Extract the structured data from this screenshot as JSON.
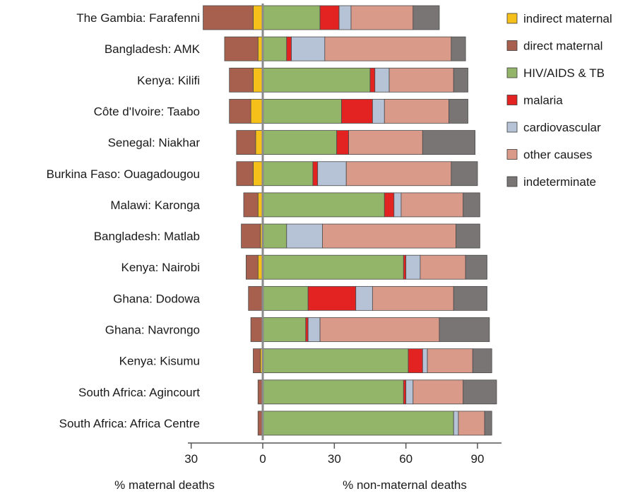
{
  "chart_data": {
    "type": "bar",
    "orientation": "horizontal",
    "stacked": true,
    "categories": [
      "The Gambia: Farafenni",
      "Bangladesh: AMK",
      "Kenya: Kilifi",
      "Côte d'Ivoire: Taabo",
      "Senegal: Niakhar",
      "Burkina Faso: Ouagadougou",
      "Malawi: Karonga",
      "Bangladesh: Matlab",
      "Kenya: Nairobi",
      "Ghana: Dodowa",
      "Ghana: Navrongo",
      "Kenya: Kisumu",
      "South Africa: Agincourt",
      "South Africa: Africa Centre"
    ],
    "maternal_series": [
      {
        "name": "indirect maternal",
        "color": "#f5c01a",
        "values": [
          4,
          2,
          4,
          5,
          3,
          4,
          2,
          1,
          2,
          0,
          0,
          1,
          0,
          0
        ]
      },
      {
        "name": "direct maternal",
        "color": "#a7604e",
        "values": [
          21,
          14,
          10,
          9,
          8,
          7,
          6,
          8,
          5,
          6,
          5,
          3,
          2,
          2
        ]
      }
    ],
    "non_maternal_series": [
      {
        "name": "HIV/AIDS & TB",
        "color": "#93b56a",
        "values": [
          24,
          10,
          45,
          33,
          31,
          21,
          51,
          10,
          59,
          19,
          18,
          61,
          59,
          80
        ]
      },
      {
        "name": "malaria",
        "color": "#e32222",
        "values": [
          8,
          2,
          2,
          13,
          5,
          2,
          4,
          0,
          1,
          20,
          1,
          6,
          1,
          0
        ]
      },
      {
        "name": "cardiovascular",
        "color": "#b6c2d6",
        "values": [
          5,
          14,
          6,
          5,
          0,
          12,
          3,
          15,
          6,
          7,
          5,
          2,
          3,
          2
        ]
      },
      {
        "name": "other causes",
        "color": "#d99a8a",
        "values": [
          26,
          53,
          27,
          27,
          31,
          44,
          26,
          56,
          19,
          34,
          50,
          19,
          21,
          11
        ]
      },
      {
        "name": "indeterminate",
        "color": "#7a7575",
        "values": [
          11,
          6,
          6,
          8,
          22,
          11,
          7,
          10,
          9,
          14,
          21,
          8,
          14,
          3
        ]
      }
    ],
    "legend": {
      "placement": "top-right",
      "entries": [
        "indirect maternal",
        "direct maternal",
        "HIV/AIDS & TB",
        "malaria",
        "cardiovascular",
        "other causes",
        "indeterminate"
      ]
    },
    "left_axis": {
      "ticks": [
        "30",
        "0"
      ],
      "label": "% maternal deaths",
      "range": [
        30,
        0
      ]
    },
    "right_axis": {
      "ticks": [
        "0",
        "30",
        "60",
        "90"
      ],
      "label": "% non-maternal deaths",
      "range": [
        0,
        100
      ]
    },
    "title": "",
    "grid": false
  }
}
